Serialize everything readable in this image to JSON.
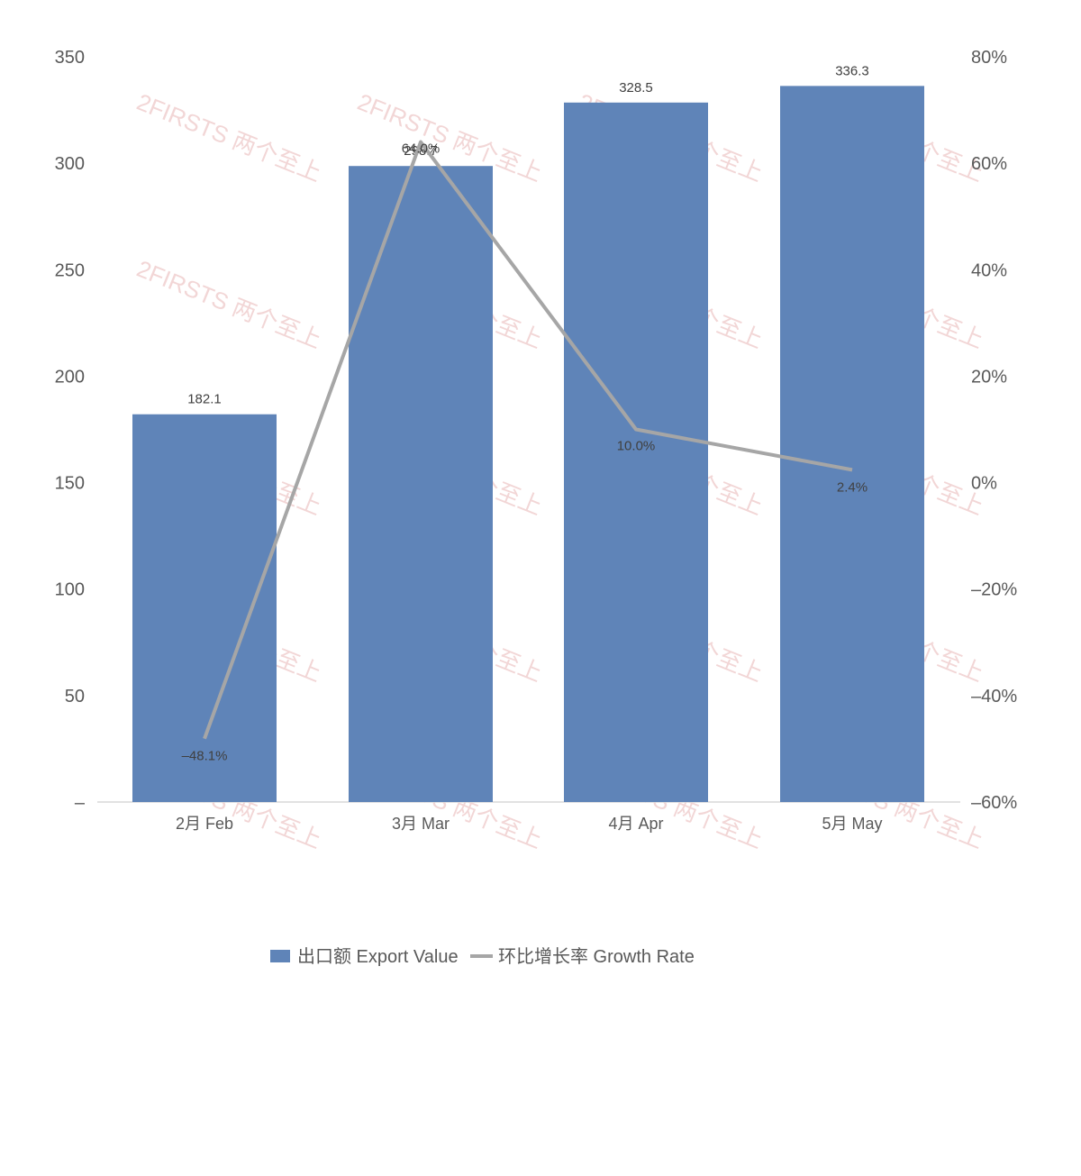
{
  "chart_data": {
    "type": "bar",
    "categories": [
      "2月 Feb",
      "3月 Mar",
      "4月 Apr",
      "5月 May"
    ],
    "series": [
      {
        "name": "出口额 Export Value",
        "type": "bar",
        "axis": "left",
        "values": [
          182.1,
          298.7,
          328.5,
          336.3
        ],
        "labels": [
          "182.1",
          "298.7",
          "328.5",
          "336.3"
        ]
      },
      {
        "name": "环比增长率 Growth Rate",
        "type": "line",
        "axis": "right",
        "values": [
          -48.1,
          64.0,
          10.0,
          2.4
        ],
        "labels": [
          "–48.1%",
          "64.0%",
          "10.0%",
          "2.4%"
        ]
      }
    ],
    "left_axis": {
      "ylim": [
        0,
        350
      ],
      "ticks": [
        "–",
        "50",
        "100",
        "150",
        "200",
        "250",
        "300",
        "350"
      ]
    },
    "right_axis": {
      "ylim": [
        -60,
        80
      ],
      "ticks": [
        "–60%",
        "–40%",
        "–20%",
        "0%",
        "20%",
        "40%",
        "60%",
        "80%"
      ]
    },
    "grid": false,
    "legend_position": "bottom",
    "colors": {
      "bar": "#5f84b8",
      "line": "#a6a6a6"
    }
  },
  "watermark": {
    "text": "2FIRSTS 两个至上"
  }
}
